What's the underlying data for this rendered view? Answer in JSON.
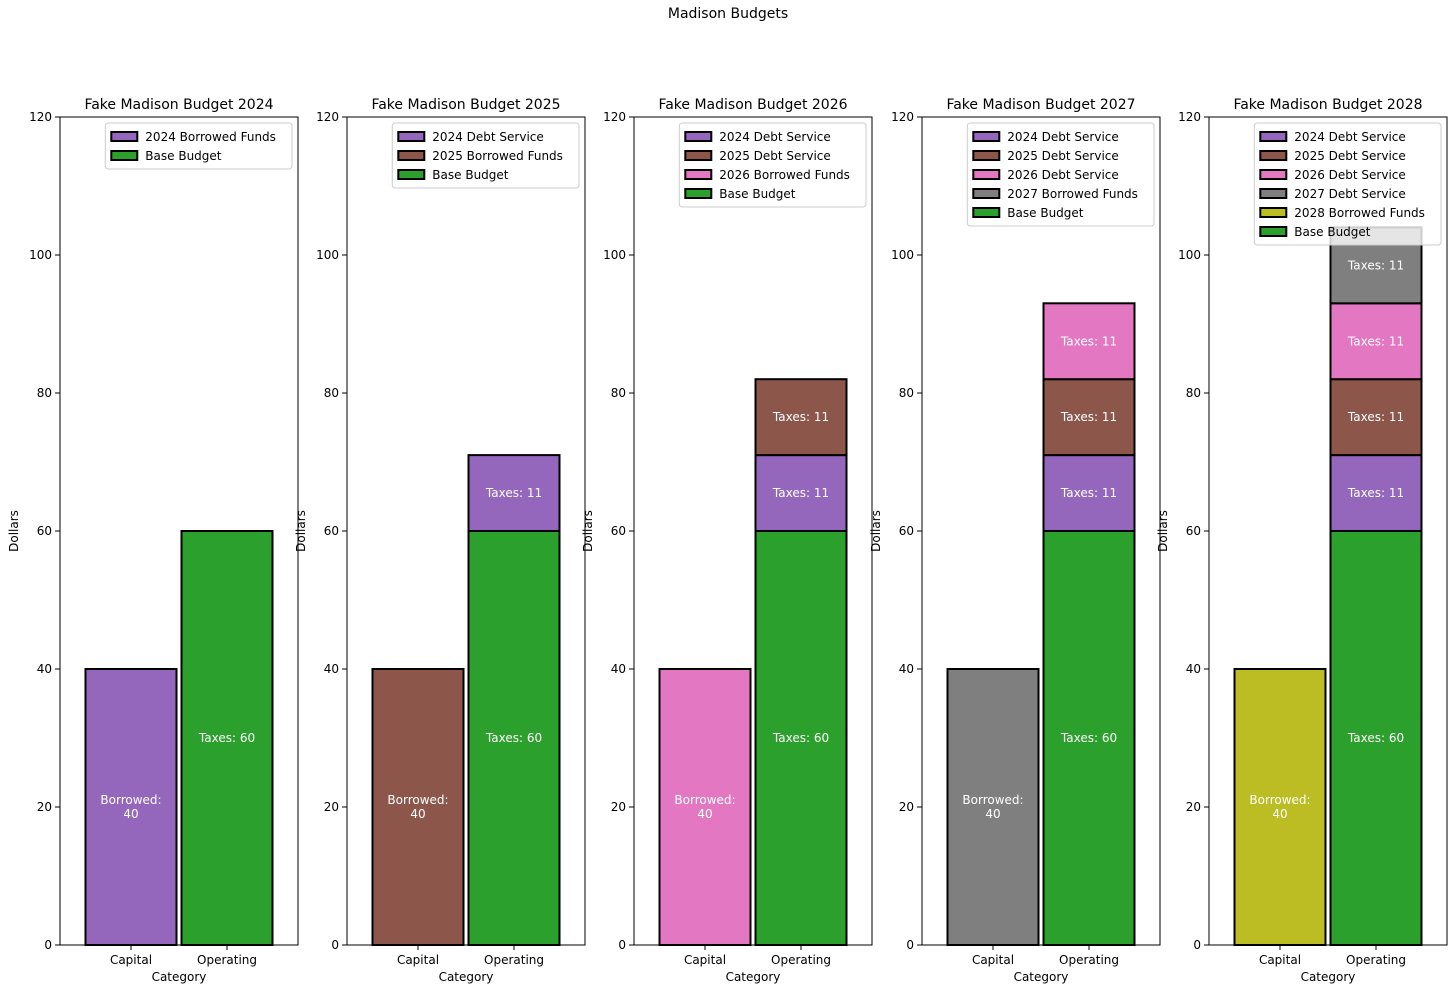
{
  "figure": {
    "title": "Madison Budgets"
  },
  "chart_data": [
    {
      "type": "bar",
      "stacked": true,
      "title": "Fake Madison Budget 2024",
      "xlabel": "Category",
      "ylabel": "Dollars",
      "ylim": [
        0,
        120
      ],
      "yticks": [
        0,
        20,
        40,
        60,
        80,
        100,
        120
      ],
      "categories": [
        "Capital",
        "Operating"
      ],
      "grid": false,
      "legend_position": "top-right",
      "legend": [
        "2024 Borrowed Funds",
        "Base Budget"
      ],
      "segments": [
        {
          "category": "Capital",
          "series": "2024 Borrowed Funds",
          "value": 40,
          "label": "Borrowed:\n40",
          "color": "#9467bd"
        },
        {
          "category": "Operating",
          "series": "Base Budget",
          "value": 60,
          "label": "Taxes: 60",
          "color": "#2ca02c"
        }
      ]
    },
    {
      "type": "bar",
      "stacked": true,
      "title": "Fake Madison Budget 2025",
      "xlabel": "Category",
      "ylabel": "Dollars",
      "ylim": [
        0,
        120
      ],
      "yticks": [
        0,
        20,
        40,
        60,
        80,
        100,
        120
      ],
      "categories": [
        "Capital",
        "Operating"
      ],
      "grid": false,
      "legend_position": "top-right",
      "legend": [
        "2024 Debt Service",
        "2025 Borrowed Funds",
        "Base Budget"
      ],
      "segments": [
        {
          "category": "Capital",
          "series": "2025 Borrowed Funds",
          "value": 40,
          "label": "Borrowed:\n40",
          "color": "#8c564b"
        },
        {
          "category": "Operating",
          "series": "Base Budget",
          "value": 60,
          "label": "Taxes: 60",
          "color": "#2ca02c"
        },
        {
          "category": "Operating",
          "series": "2024 Debt Service",
          "value": 11,
          "label": "Taxes: 11",
          "color": "#9467bd"
        }
      ]
    },
    {
      "type": "bar",
      "stacked": true,
      "title": "Fake Madison Budget 2026",
      "xlabel": "Category",
      "ylabel": "Dollars",
      "ylim": [
        0,
        120
      ],
      "yticks": [
        0,
        20,
        40,
        60,
        80,
        100,
        120
      ],
      "categories": [
        "Capital",
        "Operating"
      ],
      "grid": false,
      "legend_position": "top-right",
      "legend": [
        "2024 Debt Service",
        "2025 Debt Service",
        "2026 Borrowed Funds",
        "Base Budget"
      ],
      "segments": [
        {
          "category": "Capital",
          "series": "2026 Borrowed Funds",
          "value": 40,
          "label": "Borrowed:\n40",
          "color": "#e377c2"
        },
        {
          "category": "Operating",
          "series": "Base Budget",
          "value": 60,
          "label": "Taxes: 60",
          "color": "#2ca02c"
        },
        {
          "category": "Operating",
          "series": "2024 Debt Service",
          "value": 11,
          "label": "Taxes: 11",
          "color": "#9467bd"
        },
        {
          "category": "Operating",
          "series": "2025 Debt Service",
          "value": 11,
          "label": "Taxes: 11",
          "color": "#8c564b"
        }
      ]
    },
    {
      "type": "bar",
      "stacked": true,
      "title": "Fake Madison Budget 2027",
      "xlabel": "Category",
      "ylabel": "Dollars",
      "ylim": [
        0,
        120
      ],
      "yticks": [
        0,
        20,
        40,
        60,
        80,
        100,
        120
      ],
      "categories": [
        "Capital",
        "Operating"
      ],
      "grid": false,
      "legend_position": "top-right",
      "legend": [
        "2024 Debt Service",
        "2025 Debt Service",
        "2026 Debt Service",
        "2027 Borrowed Funds",
        "Base Budget"
      ],
      "segments": [
        {
          "category": "Capital",
          "series": "2027 Borrowed Funds",
          "value": 40,
          "label": "Borrowed:\n40",
          "color": "#7f7f7f"
        },
        {
          "category": "Operating",
          "series": "Base Budget",
          "value": 60,
          "label": "Taxes: 60",
          "color": "#2ca02c"
        },
        {
          "category": "Operating",
          "series": "2024 Debt Service",
          "value": 11,
          "label": "Taxes: 11",
          "color": "#9467bd"
        },
        {
          "category": "Operating",
          "series": "2025 Debt Service",
          "value": 11,
          "label": "Taxes: 11",
          "color": "#8c564b"
        },
        {
          "category": "Operating",
          "series": "2026 Debt Service",
          "value": 11,
          "label": "Taxes: 11",
          "color": "#e377c2"
        }
      ]
    },
    {
      "type": "bar",
      "stacked": true,
      "title": "Fake Madison Budget 2028",
      "xlabel": "Category",
      "ylabel": "Dollars",
      "ylim": [
        0,
        120
      ],
      "yticks": [
        0,
        20,
        40,
        60,
        80,
        100,
        120
      ],
      "categories": [
        "Capital",
        "Operating"
      ],
      "grid": false,
      "legend_position": "top-right",
      "legend": [
        "2024 Debt Service",
        "2025 Debt Service",
        "2026 Debt Service",
        "2027 Debt Service",
        "2028 Borrowed Funds",
        "Base Budget"
      ],
      "segments": [
        {
          "category": "Capital",
          "series": "2028 Borrowed Funds",
          "value": 40,
          "label": "Borrowed:\n40",
          "color": "#bcbd22"
        },
        {
          "category": "Operating",
          "series": "Base Budget",
          "value": 60,
          "label": "Taxes: 60",
          "color": "#2ca02c"
        },
        {
          "category": "Operating",
          "series": "2024 Debt Service",
          "value": 11,
          "label": "Taxes: 11",
          "color": "#9467bd"
        },
        {
          "category": "Operating",
          "series": "2025 Debt Service",
          "value": 11,
          "label": "Taxes: 11",
          "color": "#8c564b"
        },
        {
          "category": "Operating",
          "series": "2026 Debt Service",
          "value": 11,
          "label": "Taxes: 11",
          "color": "#e377c2"
        },
        {
          "category": "Operating",
          "series": "2027 Debt Service",
          "value": 11,
          "label": "Taxes: 11",
          "color": "#7f7f7f"
        }
      ]
    }
  ]
}
